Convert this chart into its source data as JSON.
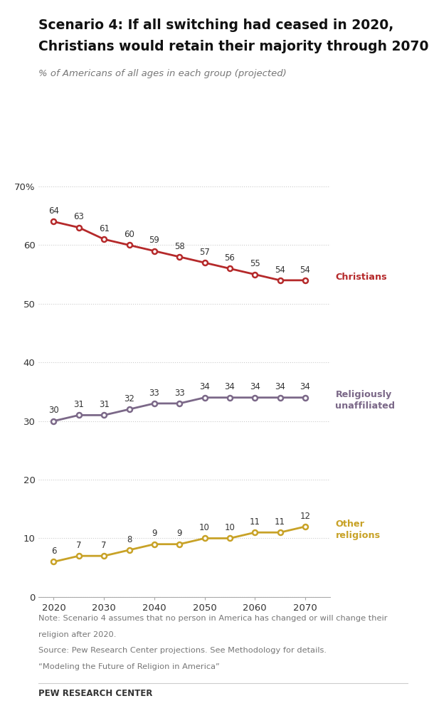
{
  "title_line1": "Scenario 4: If all switching had ceased in 2020,",
  "title_line2": "Christians would retain their majority through 2070",
  "subtitle": "% of Americans of all ages in each group (projected)",
  "years": [
    2020,
    2025,
    2030,
    2035,
    2040,
    2045,
    2050,
    2055,
    2060,
    2065,
    2070
  ],
  "christians": [
    64,
    63,
    61,
    60,
    59,
    58,
    57,
    56,
    55,
    54,
    54
  ],
  "unaffiliated": [
    30,
    31,
    31,
    32,
    33,
    33,
    34,
    34,
    34,
    34,
    34
  ],
  "other_religions": [
    6,
    7,
    7,
    8,
    9,
    9,
    10,
    10,
    11,
    11,
    12
  ],
  "christian_color": "#b5292a",
  "unaffiliated_color": "#7b6888",
  "other_color": "#c8a227",
  "background_color": "#ffffff",
  "grid_color": "#cccccc",
  "text_color": "#333333",
  "note_line1": "Note: Scenario 4 assumes that no person in America has changed or will change their",
  "note_line2": "religion after 2020.",
  "note_line3": "Source: Pew Research Center projections. See Methodology for details.",
  "note_line4": "“Modeling the Future of Religion in America”",
  "footer_text": "PEW RESEARCH CENTER",
  "ylim": [
    0,
    72
  ],
  "yticks": [
    0,
    10,
    20,
    30,
    40,
    50,
    60,
    70
  ],
  "xticks": [
    2020,
    2030,
    2040,
    2050,
    2060,
    2070
  ],
  "annotation_fontsize": 8.5,
  "label_fontsize": 9.2,
  "tick_fontsize": 9.5,
  "title_fontsize1": 13.5,
  "subtitle_fontsize": 9.5,
  "note_fontsize": 8.2,
  "footer_fontsize": 8.5
}
